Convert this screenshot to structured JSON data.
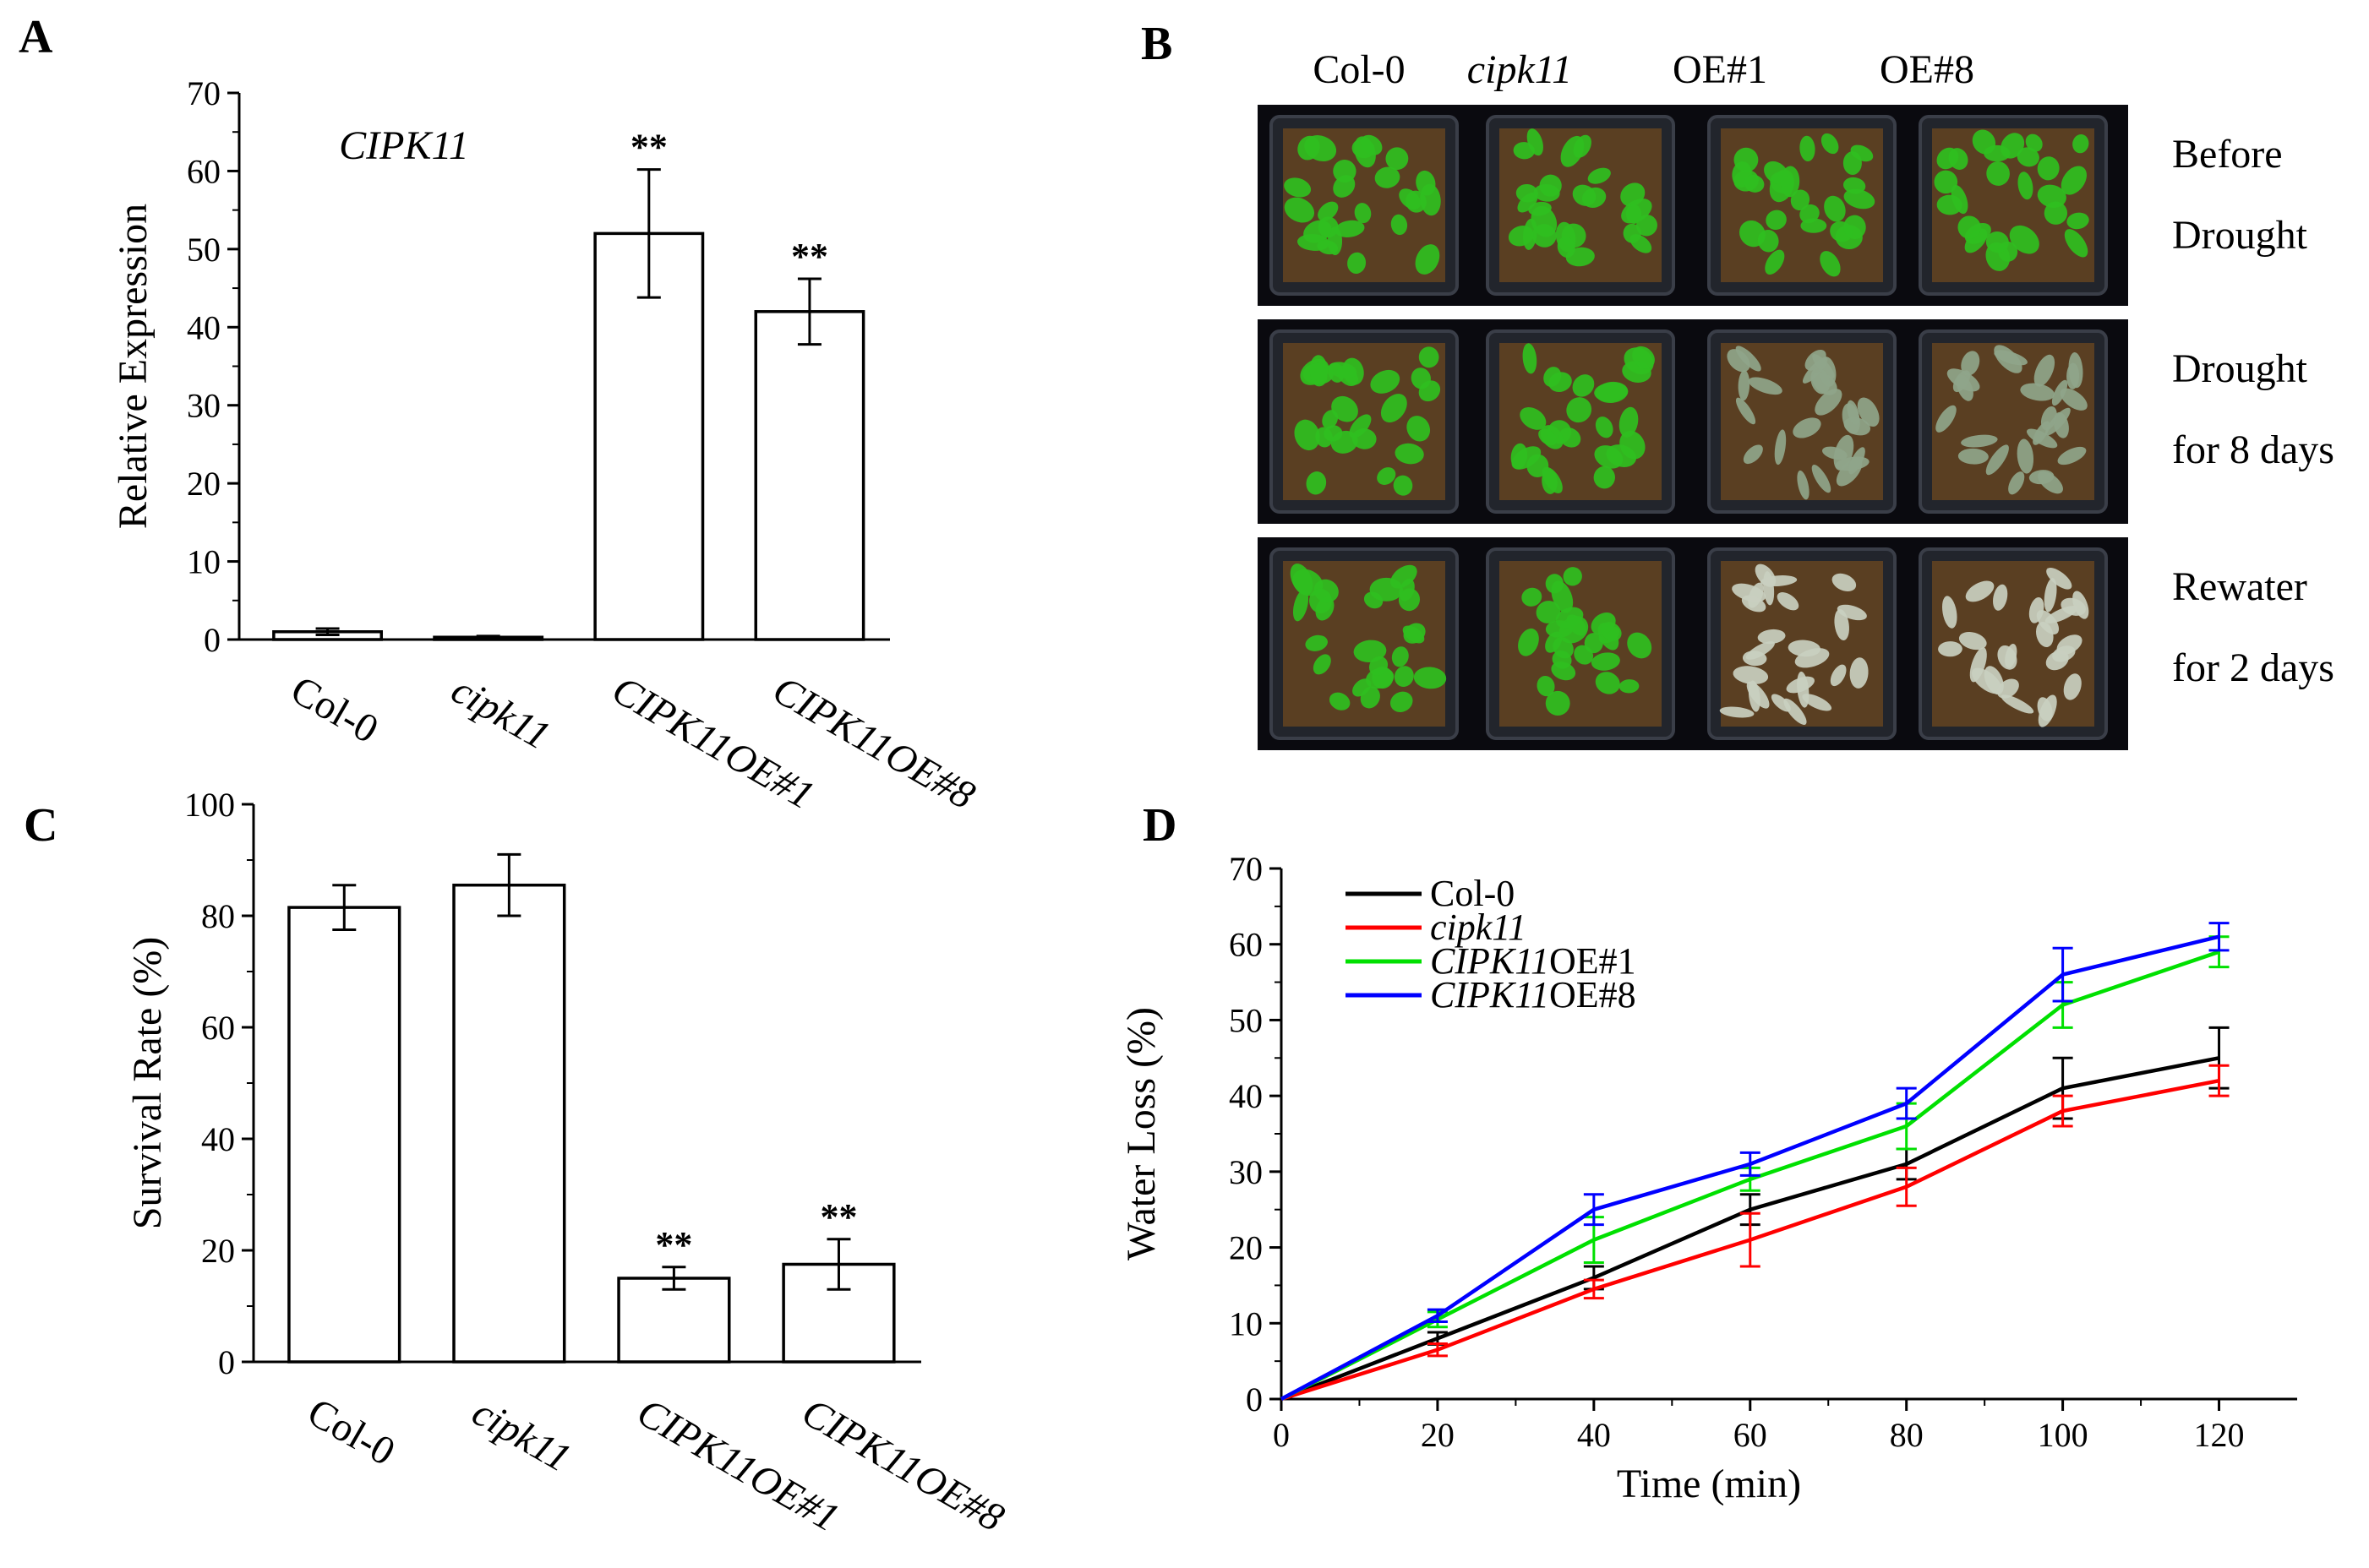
{
  "panel_b": {
    "letter": "B",
    "columns": [
      {
        "text": "Col-0",
        "italic": false
      },
      {
        "text": "cipk11",
        "italic": true
      },
      {
        "text": "OE#1",
        "italic": false
      },
      {
        "text": "OE#8",
        "italic": false
      }
    ],
    "rows": [
      {
        "line1": "Before",
        "line2": "Drought",
        "state": "before"
      },
      {
        "line1": "Drought",
        "line2": "for 8 days",
        "state": "drought"
      },
      {
        "line1": "Rewater",
        "line2": "for 2 days",
        "state": "rewater"
      }
    ],
    "colors": {
      "frame": "#0a0a0f",
      "soil": "#5a3f22",
      "healthy": "#2fbf1f",
      "stressed": "#8fa58a",
      "dry": "#c9cfc0"
    }
  },
  "chart_data": [
    {
      "panel": "A",
      "type": "bar",
      "title": "CIPK11",
      "ylabel": "Relative Expression",
      "xlabel": "",
      "ylim": [
        0,
        70
      ],
      "yticks": [
        0,
        10,
        20,
        30,
        40,
        50,
        60,
        70
      ],
      "categories": [
        "Col-0",
        "cipk11",
        "CIPK11OE#1",
        "CIPK11OE#8"
      ],
      "category_italic": [
        false,
        true,
        true,
        true
      ],
      "values": [
        1.0,
        0.3,
        52,
        42
      ],
      "errors": [
        0.4,
        0.15,
        8.2,
        4.2
      ],
      "annotations": [
        "",
        "",
        "**",
        "**"
      ]
    },
    {
      "panel": "C",
      "type": "bar",
      "title": "",
      "ylabel": "Survival Rate (%)",
      "xlabel": "",
      "ylim": [
        0,
        100
      ],
      "yticks": [
        0,
        20,
        40,
        60,
        80,
        100
      ],
      "categories": [
        "Col-0",
        "cipk11",
        "CIPK11OE#1",
        "CIPK11OE#8"
      ],
      "category_italic": [
        false,
        true,
        true,
        true
      ],
      "values": [
        81.5,
        85.5,
        15,
        17.5
      ],
      "errors": [
        4,
        5.5,
        2,
        4.5
      ],
      "annotations": [
        "",
        "",
        "**",
        "**"
      ]
    },
    {
      "panel": "D",
      "type": "line",
      "title": "",
      "xlabel": "Time (min)",
      "ylabel": "Water Loss (%)",
      "xlim": [
        0,
        130
      ],
      "ylim": [
        0,
        70
      ],
      "xticks": [
        0,
        20,
        40,
        60,
        80,
        100,
        120
      ],
      "yticks": [
        0,
        10,
        20,
        30,
        40,
        50,
        60,
        70
      ],
      "x": [
        0,
        20,
        40,
        60,
        80,
        100,
        120
      ],
      "legend_position": "top-left",
      "series": [
        {
          "name": "Col-0",
          "italic_part": "",
          "plain_part": "Col-0",
          "color": "#000000",
          "values": [
            0,
            8,
            16,
            25,
            31,
            41,
            45
          ],
          "errors": [
            0,
            0.8,
            1.5,
            2,
            2,
            4,
            4
          ]
        },
        {
          "name": "cipk11",
          "italic_part": "cipk11",
          "plain_part": "",
          "color": "#ff0000",
          "values": [
            0,
            6.5,
            14.5,
            21,
            28,
            38,
            42
          ],
          "errors": [
            0,
            0.8,
            1.2,
            3.5,
            2.5,
            2,
            2
          ]
        },
        {
          "name": "CIPK11OE#1",
          "italic_part": "CIPK11",
          "plain_part": "OE#1",
          "color": "#00e000",
          "values": [
            0,
            10.5,
            21,
            29,
            36,
            52,
            59
          ],
          "errors": [
            0,
            1,
            3,
            1.5,
            3,
            3,
            2
          ]
        },
        {
          "name": "CIPK11OE#8",
          "italic_part": "CIPK11",
          "plain_part": "OE#8",
          "color": "#0000ff",
          "values": [
            0,
            11,
            25,
            31,
            39,
            56,
            61
          ],
          "errors": [
            0,
            0.8,
            2,
            1.5,
            2,
            3.5,
            1.8
          ]
        }
      ]
    }
  ]
}
